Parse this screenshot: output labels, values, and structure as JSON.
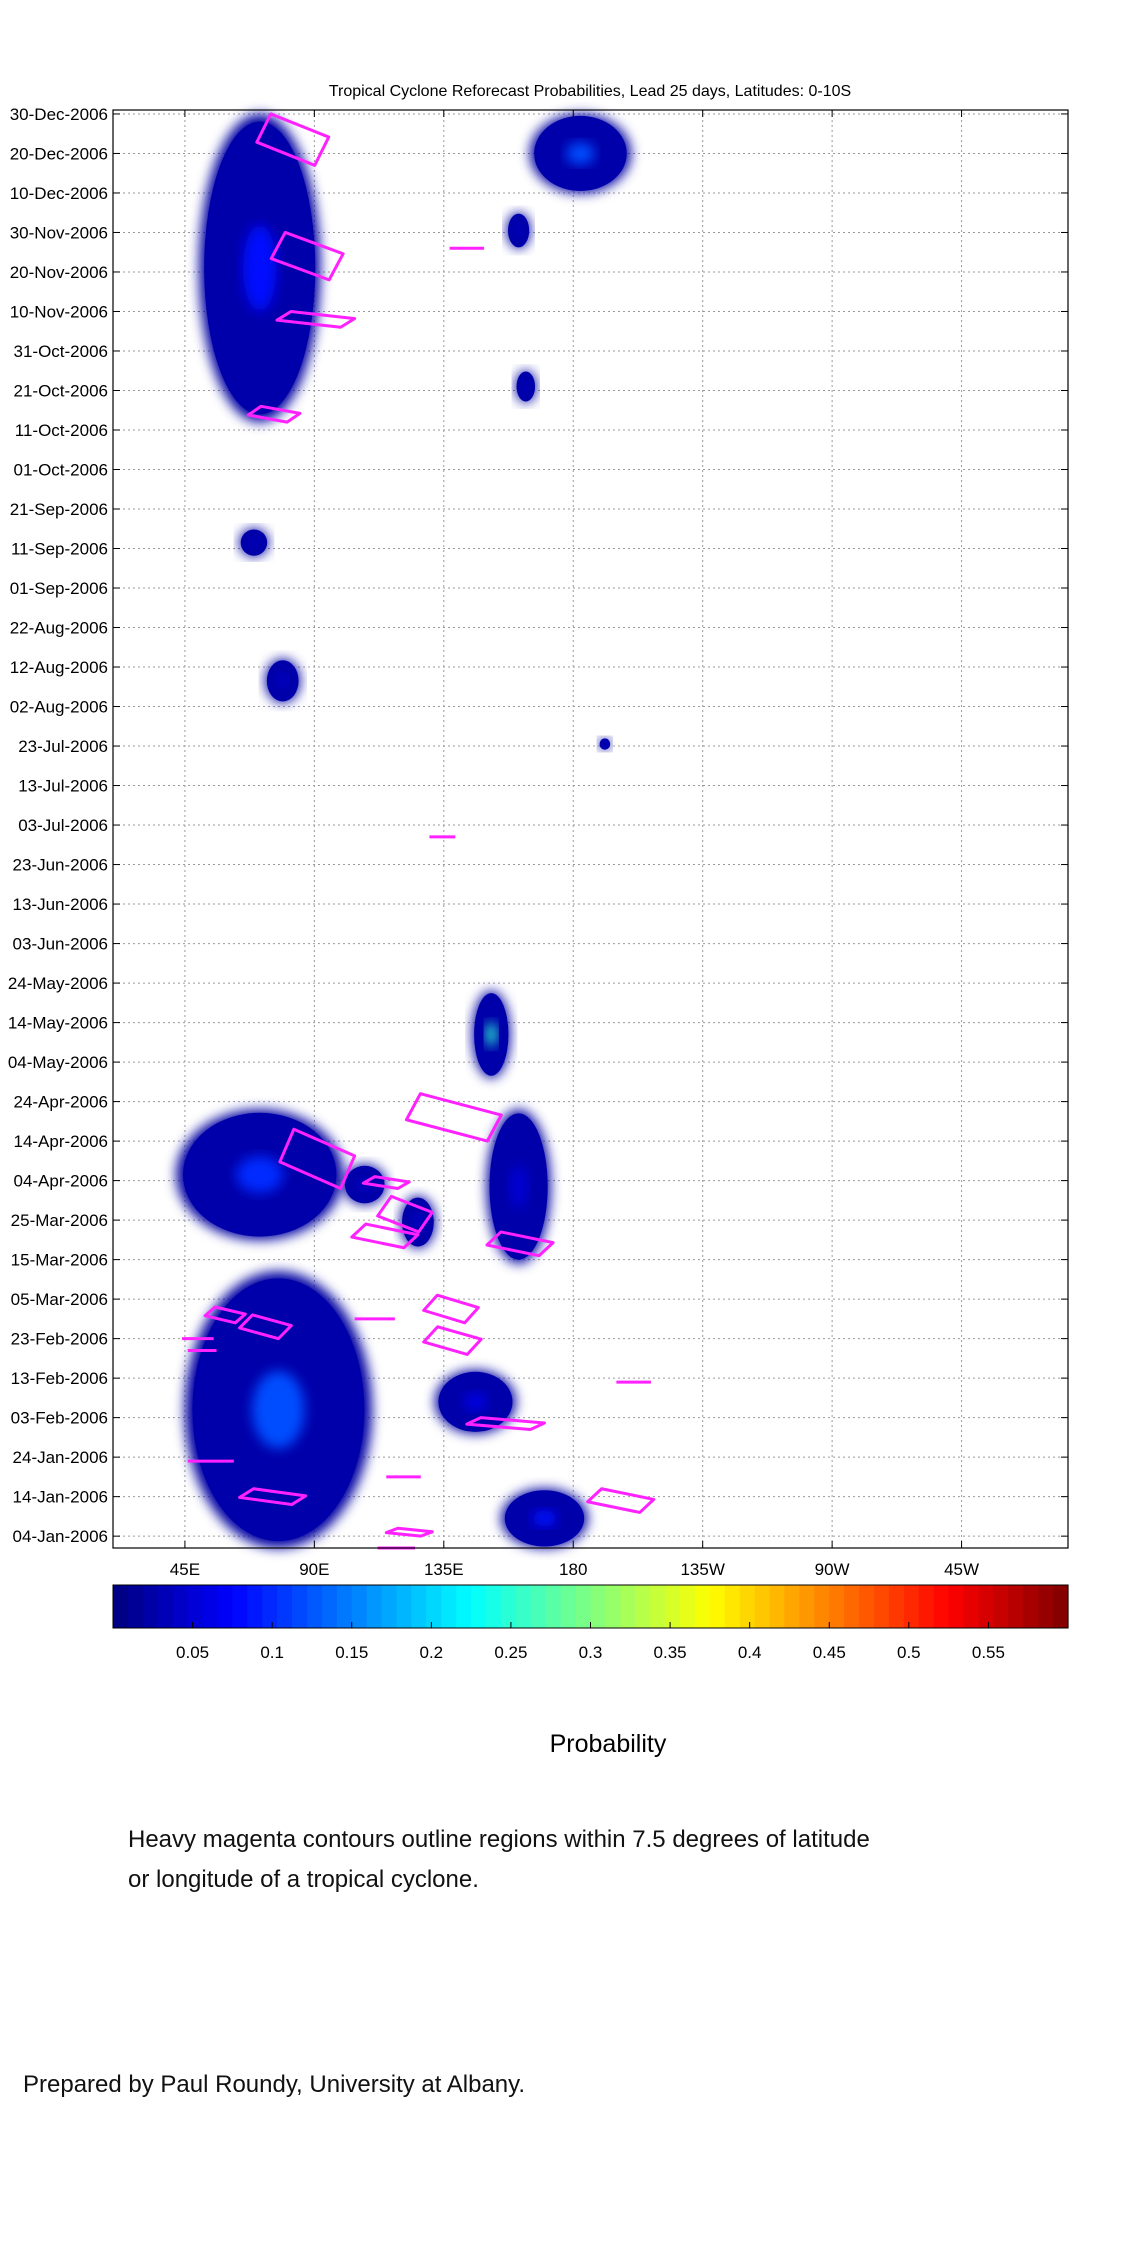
{
  "chart_data": {
    "type": "heatmap",
    "title": "Tropical Cyclone Reforecast Probabilities, Lead 25 days, Latitudes: 0-10S",
    "x_ticks": [
      "45E",
      "90E",
      "135E",
      "180",
      "135W",
      "90W",
      "45W"
    ],
    "x_tick_values": [
      45,
      90,
      135,
      180,
      225,
      270,
      315
    ],
    "xlim": [
      20,
      352
    ],
    "y_ticks": [
      "30-Dec-2006",
      "20-Dec-2006",
      "10-Dec-2006",
      "30-Nov-2006",
      "20-Nov-2006",
      "10-Nov-2006",
      "31-Oct-2006",
      "21-Oct-2006",
      "11-Oct-2006",
      "01-Oct-2006",
      "21-Sep-2006",
      "11-Sep-2006",
      "01-Sep-2006",
      "22-Aug-2006",
      "12-Aug-2006",
      "02-Aug-2006",
      "23-Jul-2006",
      "13-Jul-2006",
      "03-Jul-2006",
      "23-Jun-2006",
      "13-Jun-2006",
      "03-Jun-2006",
      "24-May-2006",
      "14-May-2006",
      "04-May-2006",
      "24-Apr-2006",
      "14-Apr-2006",
      "04-Apr-2006",
      "25-Mar-2006",
      "15-Mar-2006",
      "05-Mar-2006",
      "23-Feb-2006",
      "13-Feb-2006",
      "03-Feb-2006",
      "24-Jan-2006",
      "14-Jan-2006",
      "04-Jan-2006"
    ],
    "ylim": [
      "2006-01-01",
      "2006-12-31"
    ],
    "colorbar": {
      "label": "Probability",
      "tick_labels": [
        "0.05",
        "0.1",
        "0.15",
        "0.2",
        "0.25",
        "0.3",
        "0.35",
        "0.4",
        "0.45",
        "0.5",
        "0.55"
      ],
      "tick_values": [
        0.05,
        0.1,
        0.15,
        0.2,
        0.25,
        0.3,
        0.35,
        0.4,
        0.45,
        0.5,
        0.55
      ],
      "range": [
        0.0,
        0.6
      ]
    },
    "regions": [
      {
        "lon": [
          50,
          92
        ],
        "dates": [
          "2006-10-13",
          "2006-12-30"
        ],
        "peak": 0.08
      },
      {
        "lon": [
          165,
          200
        ],
        "dates": [
          "2006-12-10",
          "2006-12-30"
        ],
        "peak": 0.12
      },
      {
        "lon": [
          157,
          165
        ],
        "dates": [
          "2006-11-26",
          "2006-12-05"
        ],
        "peak": 0.05
      },
      {
        "lon": [
          160,
          167
        ],
        "dates": [
          "2006-10-18",
          "2006-10-26"
        ],
        "peak": 0.05
      },
      {
        "lon": [
          64,
          74
        ],
        "dates": [
          "2006-09-09",
          "2006-09-16"
        ],
        "peak": 0.05
      },
      {
        "lon": [
          73,
          85
        ],
        "dates": [
          "2006-08-03",
          "2006-08-14"
        ],
        "peak": 0.05
      },
      {
        "lon": [
          189,
          193
        ],
        "dates": [
          "2006-07-22",
          "2006-07-25"
        ],
        "peak": 0.05
      },
      {
        "lon": [
          145,
          158
        ],
        "dates": [
          "2006-04-30",
          "2006-05-22"
        ],
        "peak": 0.25
      },
      {
        "lon": [
          42,
          100
        ],
        "dates": [
          "2006-03-20",
          "2006-04-22"
        ],
        "peak": 0.1
      },
      {
        "lon": [
          100,
          115
        ],
        "dates": [
          "2006-03-29",
          "2006-04-08"
        ],
        "peak": 0.05
      },
      {
        "lon": [
          120,
          132
        ],
        "dates": [
          "2006-03-18",
          "2006-03-31"
        ],
        "peak": 0.05
      },
      {
        "lon": [
          150,
          172
        ],
        "dates": [
          "2006-03-14",
          "2006-04-22"
        ],
        "peak": 0.05
      },
      {
        "lon": [
          45,
          110
        ],
        "dates": [
          "2006-01-01",
          "2006-03-12"
        ],
        "peak": 0.12
      },
      {
        "lon": [
          132,
          160
        ],
        "dates": [
          "2006-01-30",
          "2006-02-15"
        ],
        "peak": 0.06
      },
      {
        "lon": [
          155,
          185
        ],
        "dates": [
          "2006-01-01",
          "2006-01-16"
        ],
        "peak": 0.08
      }
    ],
    "tc_contours": [
      {
        "lon": [
          70,
          95
        ],
        "dates": [
          "2006-12-17",
          "2006-12-30"
        ]
      },
      {
        "lon": [
          75,
          100
        ],
        "dates": [
          "2006-11-18",
          "2006-11-30"
        ]
      },
      {
        "lon": [
          77,
          104
        ],
        "dates": [
          "2006-11-06",
          "2006-11-10"
        ]
      },
      {
        "lon": [
          67,
          85
        ],
        "dates": [
          "2006-10-13",
          "2006-10-17"
        ]
      },
      {
        "lon": [
          137,
          149
        ],
        "dates": [
          "2006-11-26",
          "2006-11-26"
        ]
      },
      {
        "lon": [
          130,
          139
        ],
        "dates": [
          "2006-06-30",
          "2006-06-30"
        ]
      },
      {
        "lon": [
          122,
          155
        ],
        "dates": [
          "2006-04-14",
          "2006-04-26"
        ]
      },
      {
        "lon": [
          78,
          104
        ],
        "dates": [
          "2006-04-02",
          "2006-04-17"
        ]
      },
      {
        "lon": [
          107,
          123
        ],
        "dates": [
          "2006-04-02",
          "2006-04-05"
        ]
      },
      {
        "lon": [
          103,
          126
        ],
        "dates": [
          "2006-03-18",
          "2006-03-24"
        ]
      },
      {
        "lon": [
          112,
          131
        ],
        "dates": [
          "2006-03-22",
          "2006-03-31"
        ]
      },
      {
        "lon": [
          150,
          173
        ],
        "dates": [
          "2006-03-16",
          "2006-03-22"
        ]
      },
      {
        "lon": [
          128,
          147
        ],
        "dates": [
          "2006-02-27",
          "2006-03-06"
        ]
      },
      {
        "lon": [
          128,
          148
        ],
        "dates": [
          "2006-02-19",
          "2006-02-26"
        ]
      },
      {
        "lon": [
          52,
          66
        ],
        "dates": [
          "2006-02-27",
          "2006-03-03"
        ]
      },
      {
        "lon": [
          64,
          82
        ],
        "dates": [
          "2006-02-23",
          "2006-03-01"
        ]
      },
      {
        "lon": [
          44,
          55
        ],
        "dates": [
          "2006-02-23",
          "2006-02-23"
        ]
      },
      {
        "lon": [
          46,
          56
        ],
        "dates": [
          "2006-02-20",
          "2006-02-20"
        ]
      },
      {
        "lon": [
          104,
          118
        ],
        "dates": [
          "2006-02-28",
          "2006-02-28"
        ]
      },
      {
        "lon": [
          195,
          207
        ],
        "dates": [
          "2006-02-12",
          "2006-02-12"
        ]
      },
      {
        "lon": [
          143,
          170
        ],
        "dates": [
          "2006-01-31",
          "2006-02-03"
        ]
      },
      {
        "lon": [
          46,
          62
        ],
        "dates": [
          "2006-01-23",
          "2006-01-23"
        ]
      },
      {
        "lon": [
          115,
          127
        ],
        "dates": [
          "2006-01-19",
          "2006-01-19"
        ]
      },
      {
        "lon": [
          64,
          87
        ],
        "dates": [
          "2006-01-12",
          "2006-01-16"
        ]
      },
      {
        "lon": [
          185,
          208
        ],
        "dates": [
          "2006-01-10",
          "2006-01-16"
        ]
      },
      {
        "lon": [
          115,
          131
        ],
        "dates": [
          "2006-01-04",
          "2006-01-06"
        ]
      },
      {
        "lon": [
          112,
          125
        ],
        "dates": [
          "2006-01-01",
          "2006-01-01"
        ]
      }
    ],
    "contour_color": "#ff22ff"
  },
  "captions": {
    "note": [
      "Heavy magenta contours outline regions within 7.5 degrees of latitude",
      "or longitude of a tropical cyclone."
    ],
    "credit": "Prepared by Paul Roundy, University at Albany."
  }
}
